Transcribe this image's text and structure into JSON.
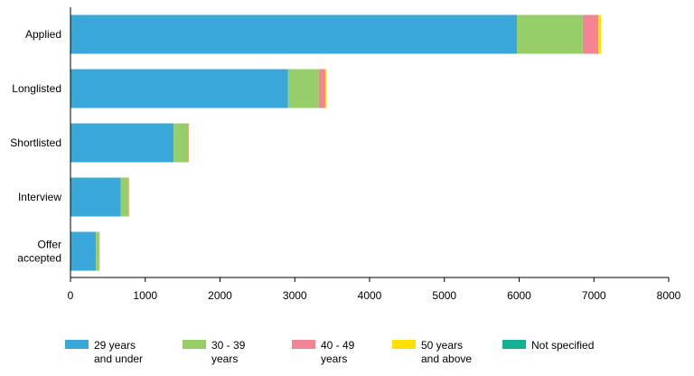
{
  "chart_data": {
    "type": "bar",
    "orientation": "horizontal",
    "stacked": true,
    "categories": [
      [
        "Applied"
      ],
      [
        "Longlisted"
      ],
      [
        "Shortlisted"
      ],
      [
        "Interview"
      ],
      [
        "Offer",
        "accepted"
      ]
    ],
    "series": [
      {
        "name": [
          "29 years",
          "and under"
        ],
        "color": "#3aa7da",
        "values": [
          5970,
          2910,
          1380,
          670,
          340
        ]
      },
      {
        "name": [
          "30 - 39",
          "years"
        ],
        "color": "#96cf6a",
        "values": [
          880,
          410,
          180,
          95,
          45
        ]
      },
      {
        "name": [
          "40 - 49",
          "years"
        ],
        "color": "#f28494",
        "values": [
          210,
          90,
          20,
          15,
          5
        ]
      },
      {
        "name": [
          "50 years",
          "and above"
        ],
        "color": "#ffe000",
        "values": [
          35,
          15,
          4,
          3,
          1
        ]
      },
      {
        "name": [
          "Not specified"
        ],
        "color": "#15b08f",
        "values": [
          0,
          0,
          0,
          0,
          0
        ]
      }
    ],
    "xlim": [
      0,
      8000
    ],
    "x_ticks": [
      0,
      1000,
      2000,
      3000,
      4000,
      5000,
      6000,
      7000,
      8000
    ],
    "grid": false,
    "legend_position": "bottom"
  }
}
